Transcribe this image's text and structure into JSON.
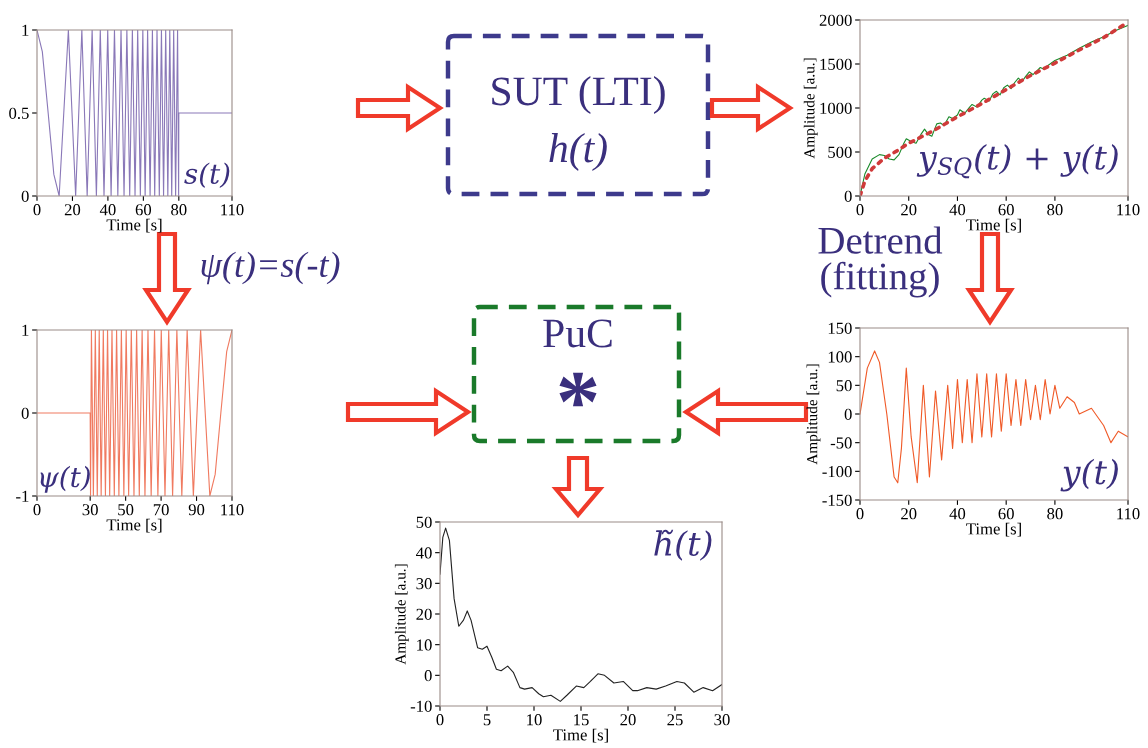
{
  "chart_data": [
    {
      "type": "line",
      "annotations": [
        "s(t)"
      ],
      "xlabel": "Time [s]",
      "xlim": [
        0,
        110
      ],
      "xticks": [
        0,
        20,
        40,
        60,
        80,
        110
      ],
      "ylim": [
        0,
        1
      ],
      "yticks": [
        0,
        0.5,
        1
      ],
      "grid": false,
      "series": [
        {
          "color": "#8a78b8",
          "x": [
            0,
            3,
            6.3,
            9.5,
            12.5,
            17.7,
            21.8,
            25.3,
            28.3,
            31.1,
            33.5,
            35.7,
            37.8,
            39.9,
            41.8,
            43.7,
            45.6,
            47.4,
            49.1,
            50.7,
            52.3,
            53.8,
            55.3,
            56.8,
            58.3,
            59.7,
            61.0,
            62.4,
            63.8,
            65.1,
            66.4,
            67.7,
            69.0,
            70.2,
            71.4,
            72.6,
            73.8,
            74.9,
            76.0,
            77.1,
            78.2,
            79.3,
            79.9,
            80,
            110
          ],
          "values": [
            1,
            0.87,
            0.5,
            0.13,
            0,
            1,
            0,
            1,
            0,
            1,
            0,
            1,
            0,
            1,
            0,
            1,
            0,
            1,
            0,
            1,
            0,
            1,
            0,
            1,
            0,
            1,
            0,
            1,
            0,
            1,
            0,
            1,
            0,
            1,
            0,
            1,
            0,
            1,
            0,
            1,
            0,
            1,
            0,
            0.5,
            0.5
          ]
        }
      ]
    },
    {
      "type": "other",
      "annotations": [
        "SUT (LTI)",
        "h(t)",
        "ψ(t)=s(-t)",
        "Detrend\n(fitting)",
        "PuC",
        "*"
      ]
    },
    {
      "type": "line",
      "annotations": [
        "y$_{SQ}$(t) + y(t)"
      ],
      "xlabel": "Time [s]",
      "ylabel": "Amplitude [a.u.]",
      "xlim": [
        0,
        110
      ],
      "xticks": [
        0,
        20,
        40,
        60,
        80,
        110
      ],
      "ylim": [
        0,
        2000
      ],
      "yticks": [
        0,
        500,
        1000,
        1500,
        2000
      ],
      "grid": false,
      "series": [
        {
          "color": "#1a8a2a",
          "x": [
            0,
            2,
            5,
            8,
            10,
            12,
            14,
            16,
            18,
            19,
            21,
            23,
            25,
            26.5,
            28,
            29.5,
            31.5,
            33,
            34.5,
            36.5,
            38,
            40,
            41,
            43,
            45,
            46,
            48,
            50,
            51,
            53,
            54.5,
            56,
            57.5,
            59,
            60.5,
            62,
            63.5,
            65,
            66.5,
            68,
            69.5,
            71,
            72.5,
            74,
            75.5,
            77,
            80,
            85,
            90,
            95,
            100,
            105,
            110
          ],
          "values": [
            0,
            250,
            420,
            470,
            460,
            420,
            410,
            470,
            600,
            650,
            620,
            600,
            700,
            760,
            700,
            680,
            820,
            830,
            800,
            900,
            880,
            920,
            980,
            940,
            1010,
            1040,
            1010,
            1090,
            1110,
            1080,
            1160,
            1190,
            1150,
            1230,
            1260,
            1220,
            1290,
            1340,
            1300,
            1360,
            1410,
            1380,
            1420,
            1460,
            1440,
            1480,
            1540,
            1600,
            1680,
            1750,
            1810,
            1880,
            1940
          ]
        },
        {
          "color": "#d03a3a",
          "line_style": "dotted",
          "x": [
            0,
            2,
            5,
            10,
            15,
            20,
            30,
            40,
            50,
            60,
            70,
            80,
            90,
            100,
            108
          ],
          "values": [
            0,
            170,
            310,
            430,
            510,
            600,
            740,
            900,
            1050,
            1210,
            1370,
            1510,
            1660,
            1800,
            1940
          ]
        }
      ]
    },
    {
      "type": "line",
      "annotations": [
        "ψ(t)"
      ],
      "xlabel": "Time [s]",
      "xlim": [
        0,
        110
      ],
      "xticks": [
        0,
        30,
        50,
        70,
        90,
        110
      ],
      "ylim": [
        -1,
        1
      ],
      "yticks": [
        -1,
        0,
        1
      ],
      "grid": false,
      "series": [
        {
          "color": "#f07a60",
          "x": [
            0,
            30,
            30.2,
            30.7,
            31.8,
            32.9,
            34.0,
            35.1,
            36.2,
            37.4,
            38.6,
            39.8,
            41.0,
            42.3,
            43.6,
            44.9,
            46.2,
            47.6,
            49.0,
            50.3,
            51.7,
            53.2,
            54.7,
            56.2,
            57.7,
            59.3,
            60.9,
            62.6,
            64.4,
            66.3,
            68.2,
            70.1,
            72.2,
            74.3,
            76.5,
            78.9,
            81.7,
            84.7,
            88.2,
            92.3,
            97.5,
            100.5,
            103.7,
            107,
            110
          ],
          "values": [
            0,
            0,
            -1,
            1,
            -1,
            1,
            -1,
            1,
            -1,
            1,
            -1,
            1,
            -1,
            1,
            -1,
            1,
            -1,
            1,
            -1,
            1,
            -1,
            1,
            -1,
            1,
            -1,
            1,
            -1,
            1,
            -1,
            1,
            -1,
            1,
            -1,
            1,
            -1,
            1,
            -1,
            1,
            -1,
            1,
            -1,
            -0.74,
            0,
            0.74,
            1
          ]
        }
      ]
    },
    {
      "type": "line",
      "annotations": [
        "y(t)"
      ],
      "xlabel": "Time [s]",
      "ylabel": "Amplitude [a.u.]",
      "xlim": [
        0,
        110
      ],
      "xticks": [
        0,
        20,
        40,
        60,
        80,
        110
      ],
      "ylim": [
        -150,
        150
      ],
      "yticks": [
        -150,
        -100,
        -50,
        0,
        50,
        100,
        150
      ],
      "grid": false,
      "series": [
        {
          "color": "#f05a28",
          "x": [
            0,
            3,
            6,
            8,
            11,
            14,
            15.5,
            17,
            19,
            21,
            23.5,
            26,
            28.5,
            31,
            33.5,
            36,
            38,
            40,
            42,
            44,
            46,
            48,
            50,
            52,
            54,
            56,
            58,
            60,
            62,
            64,
            66,
            68,
            70,
            72,
            74,
            76,
            78,
            80,
            82,
            85,
            88,
            90,
            95,
            100,
            103,
            106,
            110
          ],
          "values": [
            0,
            80,
            110,
            90,
            0,
            -110,
            -120,
            -60,
            80,
            -40,
            -120,
            50,
            -110,
            40,
            -80,
            50,
            -60,
            60,
            -50,
            60,
            -50,
            70,
            -40,
            70,
            -40,
            70,
            -30,
            70,
            -20,
            60,
            -20,
            60,
            -10,
            50,
            -10,
            60,
            0,
            50,
            10,
            30,
            20,
            0,
            10,
            -20,
            -50,
            -30,
            -40
          ]
        }
      ]
    },
    {
      "type": "line",
      "annotations": [
        "h̃(t)"
      ],
      "xlabel": "Time [s]",
      "ylabel": "Amplitude [a.u.]",
      "xlim": [
        0,
        30
      ],
      "xticks": [
        0,
        5,
        10,
        15,
        20,
        25,
        30
      ],
      "ylim": [
        -10,
        50
      ],
      "yticks": [
        -10,
        0,
        10,
        20,
        30,
        40,
        50
      ],
      "grid": false,
      "series": [
        {
          "color": "#222222",
          "x": [
            0,
            0.3,
            0.6,
            1,
            1.5,
            2,
            2.5,
            2.9,
            3.3,
            4,
            4.5,
            5,
            5.5,
            6,
            6.5,
            7.2,
            7.8,
            8.5,
            9,
            9.8,
            10.5,
            11,
            11.8,
            12.8,
            13.5,
            14.5,
            15.3,
            16,
            16.8,
            17.5,
            18.5,
            19.5,
            20.5,
            21,
            22,
            23,
            24,
            25.2,
            26,
            27,
            28,
            29,
            30
          ],
          "values": [
            33,
            45,
            48,
            44,
            25,
            16,
            18,
            21,
            18,
            9,
            8.5,
            9.5,
            6,
            2,
            1.5,
            3,
            1,
            -4,
            -4.5,
            -4,
            -6,
            -7,
            -6.5,
            -8.5,
            -6.5,
            -3.5,
            -4,
            -2,
            0.5,
            0,
            -2.5,
            -2,
            -5,
            -5,
            -4,
            -4.5,
            -3.5,
            -2,
            -2.5,
            -5.5,
            -4,
            -5,
            -3
          ]
        }
      ]
    }
  ]
}
